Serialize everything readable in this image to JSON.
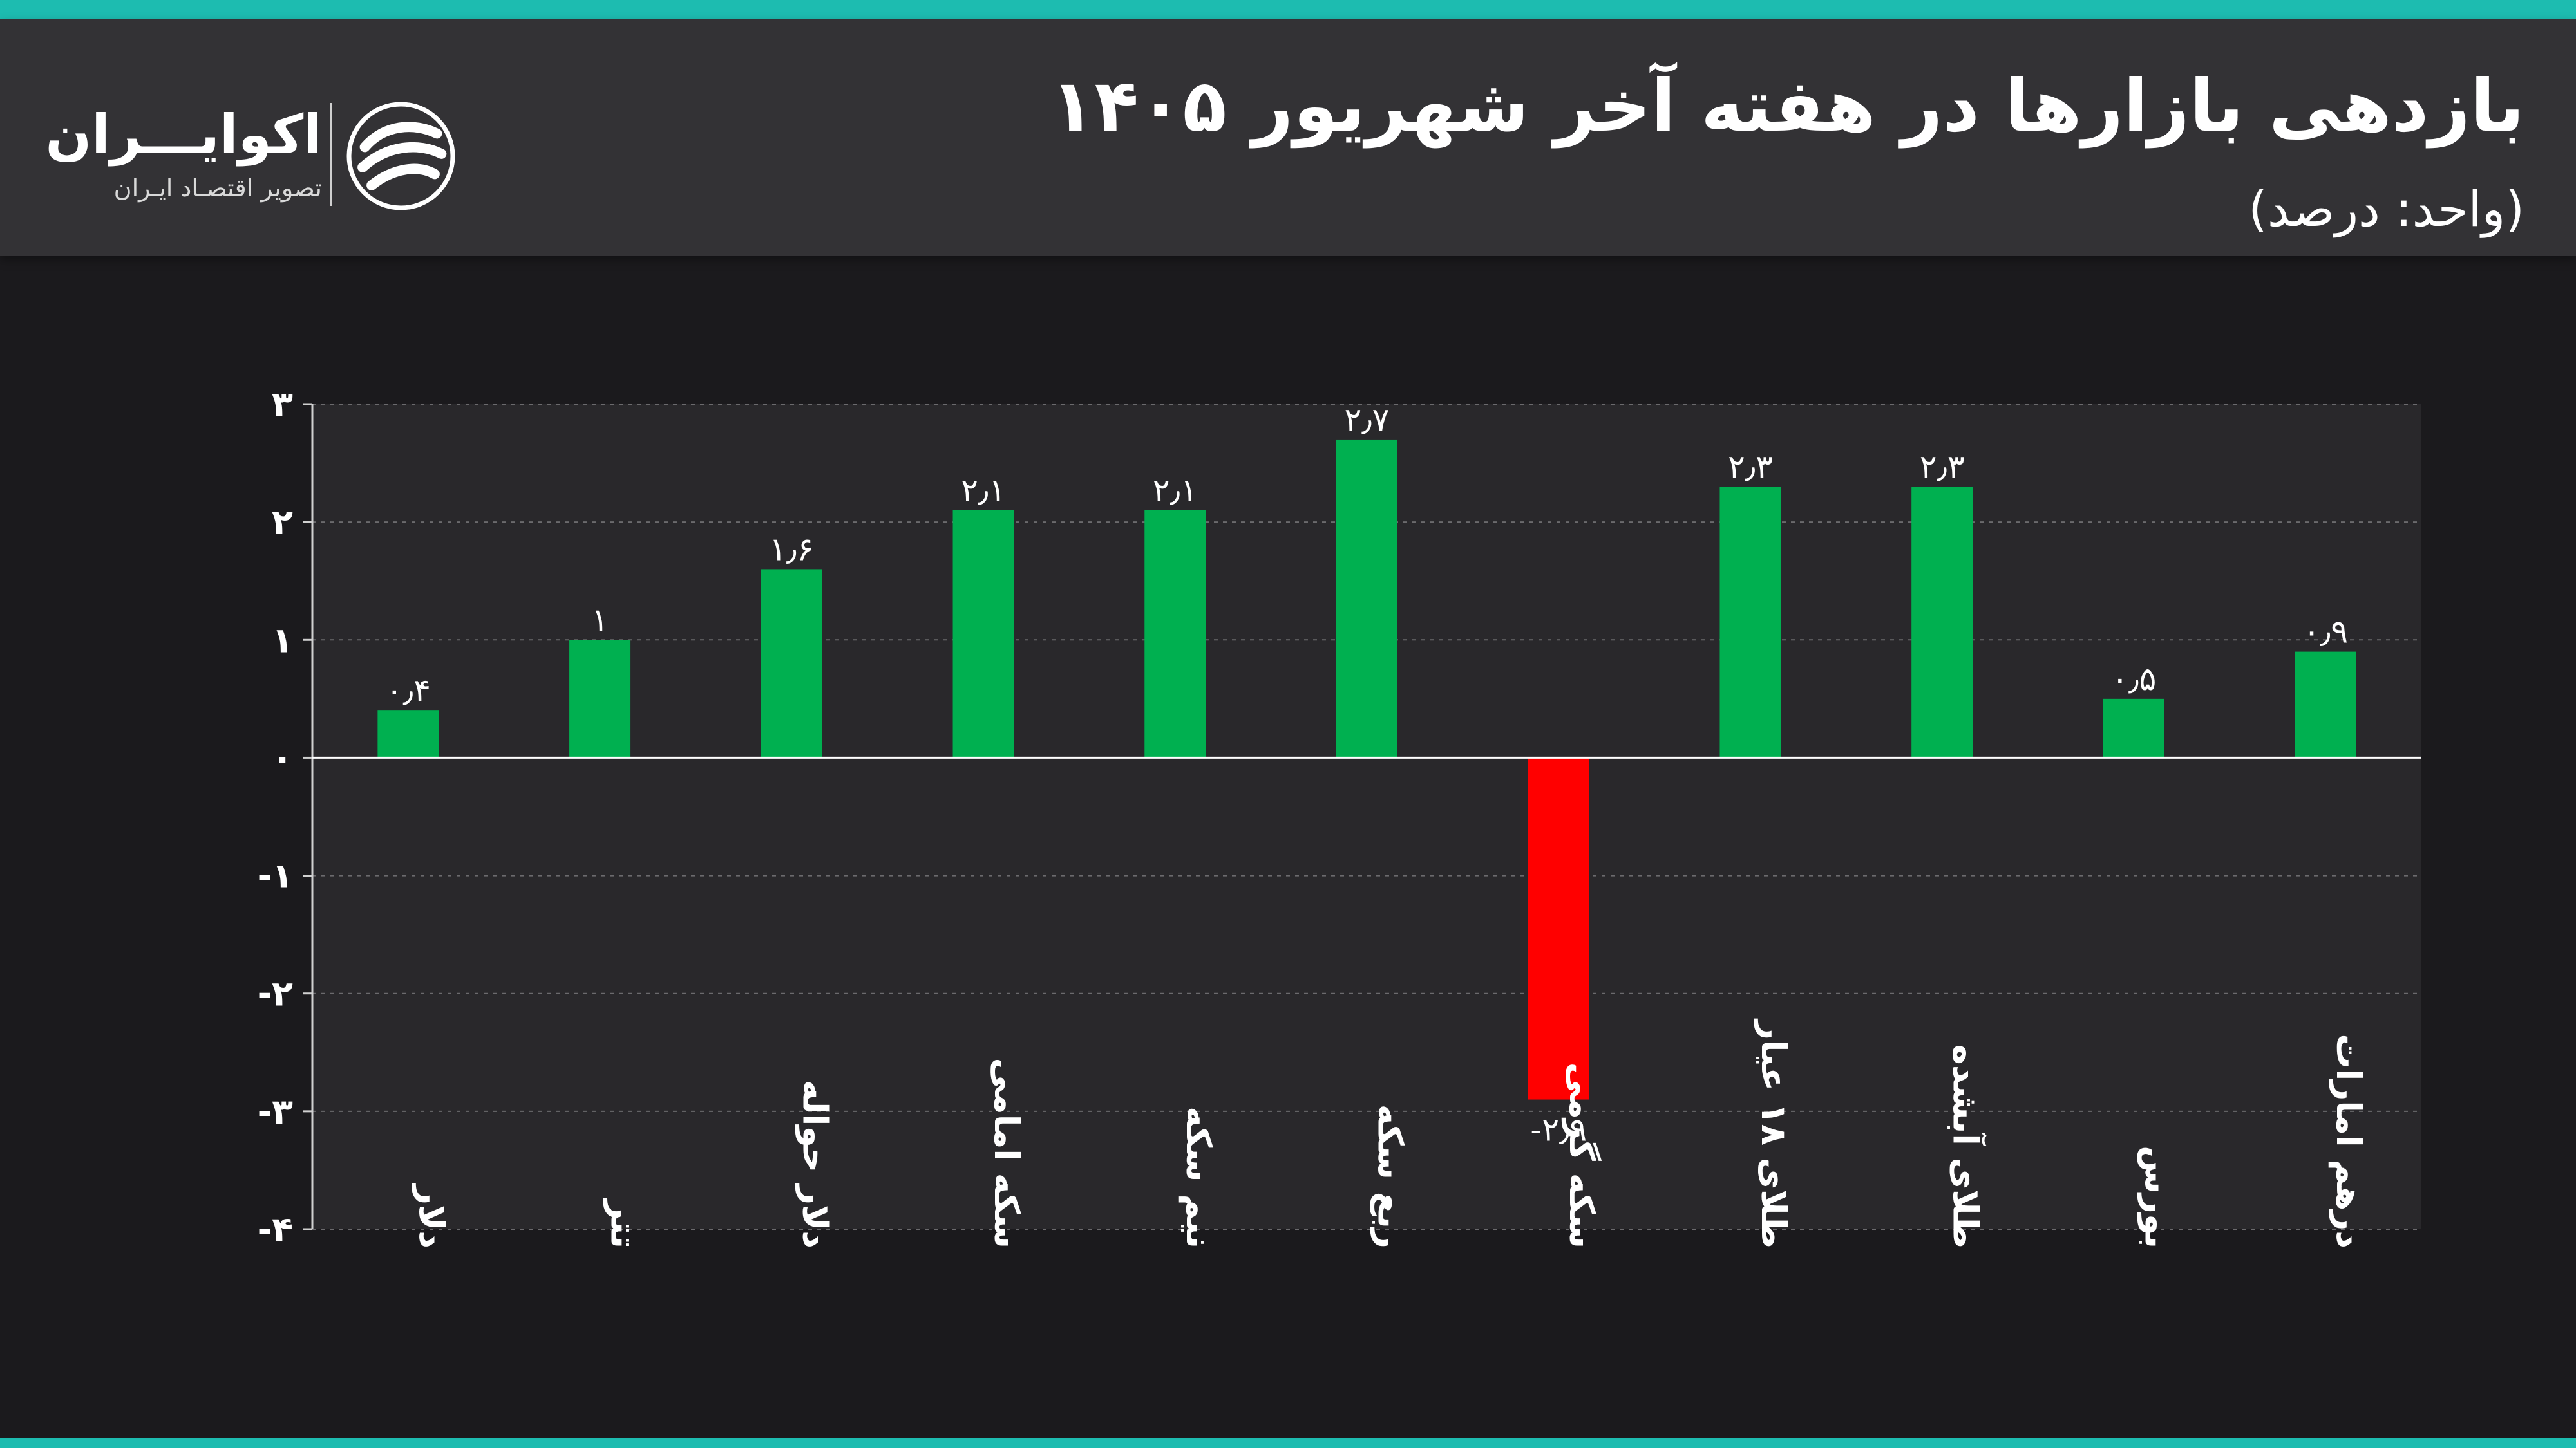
{
  "header": {
    "title": "بازدهی بازارها در هفته آخر شهریور ۱۴۰۵",
    "subtitle": "(واحد: درصد)"
  },
  "brand": {
    "name": "اکوایـــران",
    "tagline": "تصویر اقتصـاد ایـران",
    "logo_icon": "ecoiran-swirl-icon"
  },
  "colors": {
    "positive": "#00b050",
    "negative": "#ff0000",
    "accent": "#1dbcb0",
    "plot_bg": "#29282b",
    "header_bg": "#333235"
  },
  "chart_data": {
    "type": "bar",
    "title": "بازدهی بازارها در هفته آخر شهریور ۱۴۰۵",
    "ylabel": "",
    "xlabel": "",
    "ylim": [
      -4,
      3
    ],
    "yticks": [
      3,
      2,
      1,
      0,
      -1,
      -2,
      -3,
      -4
    ],
    "ytick_labels": [
      "۳",
      "۲",
      "۱",
      "۰",
      "-۱",
      "-۲",
      "-۳",
      "-۴"
    ],
    "grid": true,
    "categories": [
      "دلار",
      "تتر",
      "دلار حواله",
      "سکه امامی",
      "نیم سکه",
      "ربع سکه",
      "سکه گرمی",
      "طلای ۱۸ عیار",
      "طلای آبشده",
      "بورس",
      "درهم امارات"
    ],
    "values": [
      0.4,
      1,
      1.6,
      2.1,
      2.1,
      2.7,
      -2.9,
      2.3,
      2.3,
      0.5,
      0.9
    ],
    "value_labels": [
      "۰٫۴",
      "۱",
      "۱٫۶",
      "۲٫۱",
      "۲٫۱",
      "۲٫۷",
      "-۲٫۹",
      "۲٫۳",
      "۲٫۳",
      "۰٫۵",
      "۰٫۹"
    ]
  }
}
